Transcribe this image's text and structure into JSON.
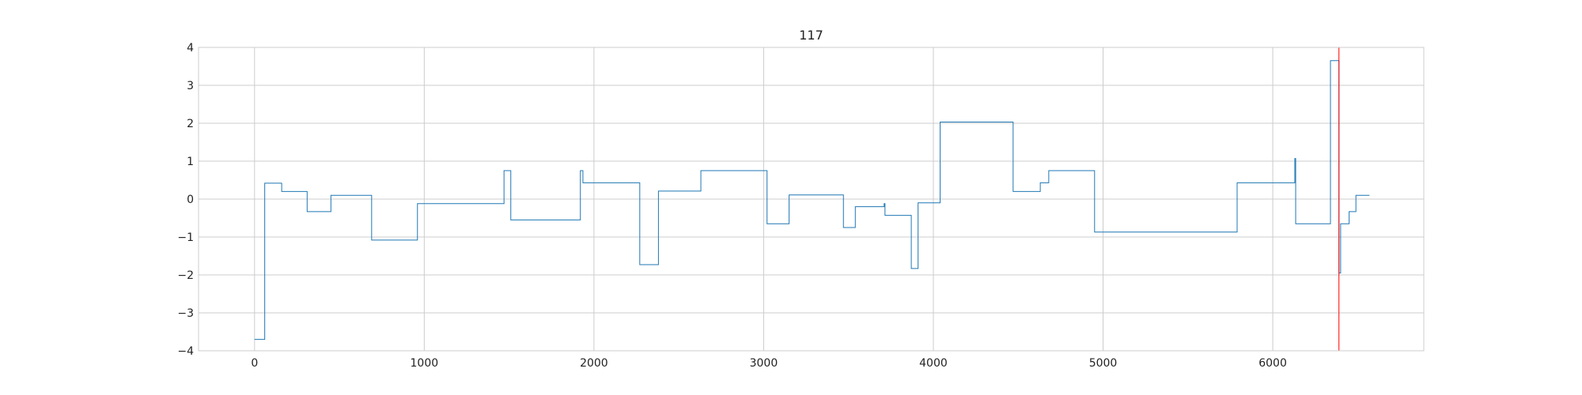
{
  "chart_data": {
    "type": "line",
    "step": true,
    "title": "117",
    "xlabel": "",
    "ylabel": "",
    "xlim": [
      -330,
      6890
    ],
    "ylim": [
      -4.0,
      4.0
    ],
    "xticks": [
      0,
      1000,
      2000,
      3000,
      4000,
      5000,
      6000
    ],
    "yticks": [
      -4,
      -3,
      -2,
      -1,
      0,
      1,
      2,
      3,
      4
    ],
    "grid": true,
    "colors": {
      "series": "#1f77b4",
      "vline": "#ff0000",
      "grid": "#cccccc",
      "frame": "#cccccc"
    },
    "vline_x": 6390,
    "series": [
      {
        "points": [
          [
            0,
            -3.7
          ],
          [
            60,
            -3.7
          ],
          [
            60,
            0.42
          ],
          [
            160,
            0.42
          ],
          [
            160,
            0.2
          ],
          [
            310,
            0.2
          ],
          [
            310,
            -0.33
          ],
          [
            450,
            -0.33
          ],
          [
            450,
            0.1
          ],
          [
            690,
            0.1
          ],
          [
            690,
            -1.08
          ],
          [
            960,
            -1.08
          ],
          [
            960,
            -0.12
          ],
          [
            1470,
            -0.12
          ],
          [
            1470,
            0.75
          ],
          [
            1510,
            0.75
          ],
          [
            1510,
            -0.55
          ],
          [
            1920,
            -0.55
          ],
          [
            1920,
            0.75
          ],
          [
            1935,
            0.75
          ],
          [
            1935,
            0.43
          ],
          [
            2270,
            0.43
          ],
          [
            2270,
            -1.73
          ],
          [
            2380,
            -1.73
          ],
          [
            2380,
            0.21
          ],
          [
            2630,
            0.21
          ],
          [
            2630,
            0.75
          ],
          [
            3020,
            0.75
          ],
          [
            3020,
            -0.65
          ],
          [
            3150,
            -0.65
          ],
          [
            3150,
            0.11
          ],
          [
            3470,
            0.11
          ],
          [
            3470,
            -0.75
          ],
          [
            3540,
            -0.75
          ],
          [
            3540,
            -0.2
          ],
          [
            3710,
            -0.2
          ],
          [
            3710,
            -0.12
          ],
          [
            3715,
            -0.12
          ],
          [
            3715,
            -0.43
          ],
          [
            3870,
            -0.43
          ],
          [
            3870,
            -1.83
          ],
          [
            3910,
            -1.83
          ],
          [
            3910,
            -0.1
          ],
          [
            4040,
            -0.1
          ],
          [
            4040,
            2.03
          ],
          [
            4470,
            2.03
          ],
          [
            4470,
            0.2
          ],
          [
            4630,
            0.2
          ],
          [
            4630,
            0.43
          ],
          [
            4680,
            0.43
          ],
          [
            4680,
            0.75
          ],
          [
            4950,
            0.75
          ],
          [
            4950,
            -0.87
          ],
          [
            5790,
            -0.87
          ],
          [
            5790,
            0.43
          ],
          [
            6130,
            0.43
          ],
          [
            6130,
            1.07
          ],
          [
            6135,
            1.07
          ],
          [
            6135,
            -0.65
          ],
          [
            6340,
            -0.65
          ],
          [
            6340,
            3.65
          ],
          [
            6390,
            3.65
          ],
          [
            6390,
            -1.95
          ],
          [
            6400,
            -1.95
          ],
          [
            6400,
            -0.65
          ],
          [
            6450,
            -0.65
          ],
          [
            6450,
            -0.33
          ],
          [
            6490,
            -0.33
          ],
          [
            6490,
            0.1
          ],
          [
            6570,
            0.1
          ]
        ]
      }
    ]
  }
}
